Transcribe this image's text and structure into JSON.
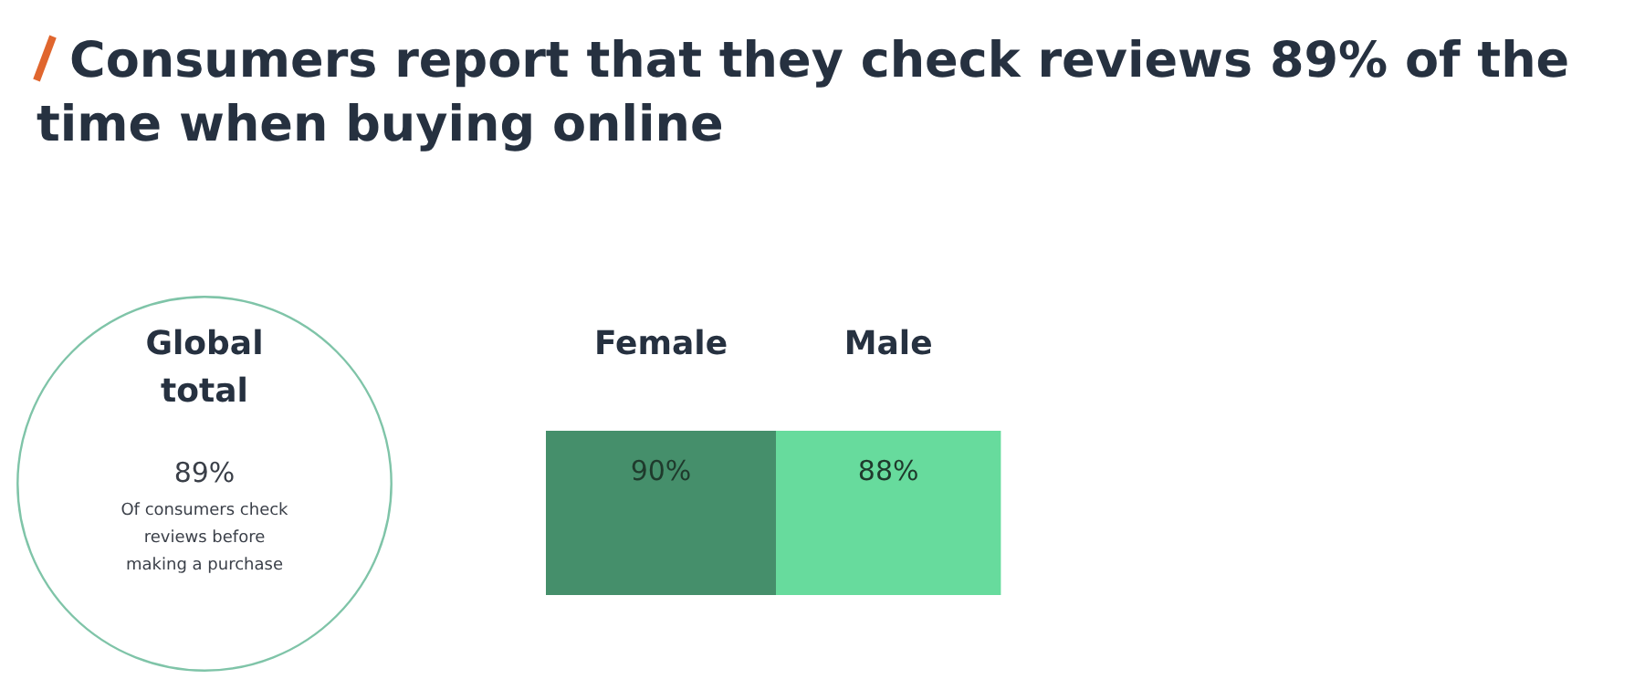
{
  "chart_data": [
    {
      "type": "other",
      "title": "Consumers report that they check reviews 89% of the time when buying online",
      "subtitle": "Global total",
      "values": [
        89
      ],
      "value_labels": [
        "89%"
      ],
      "color": "#7fc4a8",
      "annotations": [
        "Of consumers check reviews before making a purchase"
      ]
    },
    {
      "type": "other",
      "categories": [
        "Female",
        "Male"
      ],
      "values": [
        90,
        88
      ],
      "value_labels": [
        "90%",
        "88%"
      ],
      "colors": [
        "#458f6b",
        "#67db9d"
      ]
    }
  ]
}
